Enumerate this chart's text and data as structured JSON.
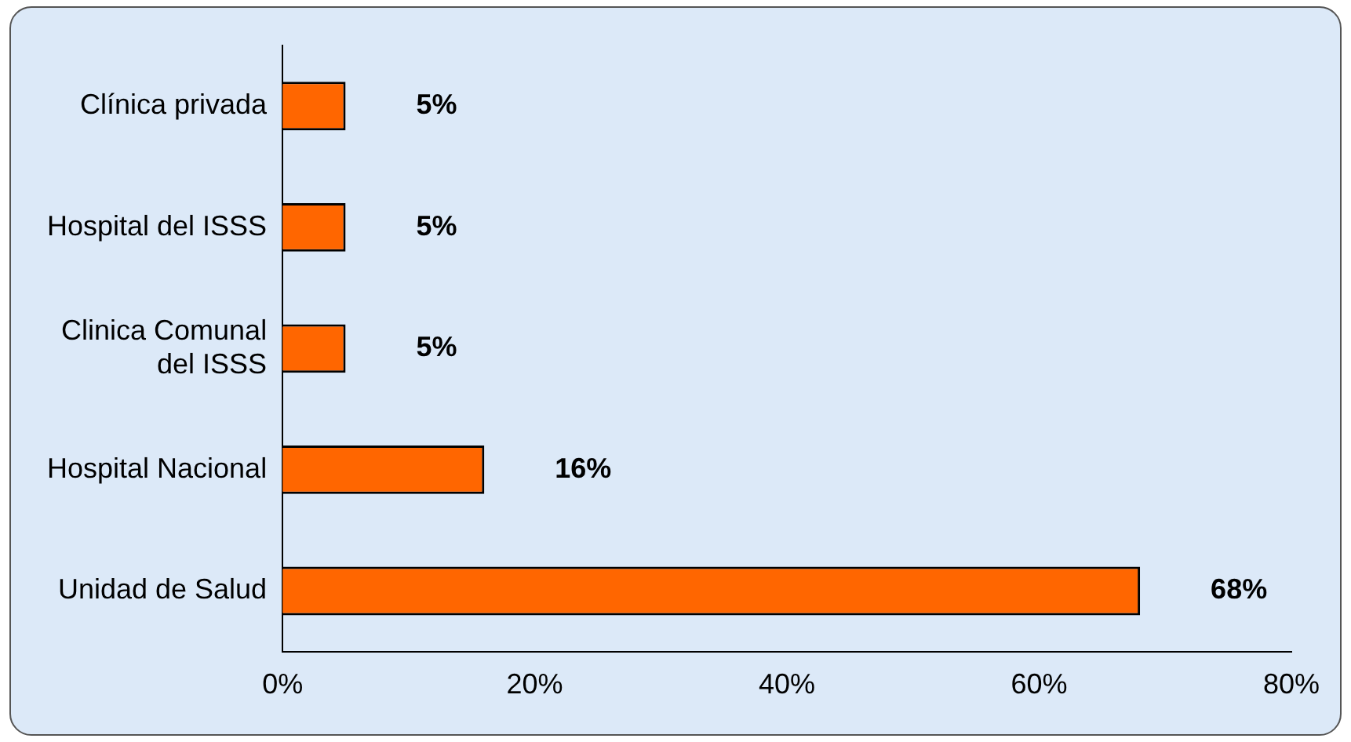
{
  "chart_data": {
    "type": "bar",
    "orientation": "horizontal",
    "categories": [
      "Clínica privada",
      "Hospital del ISSS",
      "Clinica Comunal del ISSS",
      "Hospital Nacional",
      "Unidad de Salud"
    ],
    "values": [
      5,
      5,
      5,
      16,
      68
    ],
    "color": "#ff6600",
    "value_labels": [
      "5%",
      "5%",
      "5%",
      "16%",
      "68%"
    ],
    "xlim": [
      0,
      80
    ],
    "xticks": [
      {
        "value": 0,
        "label": "0%"
      },
      {
        "value": 20,
        "label": "20%"
      },
      {
        "value": 40,
        "label": "40%"
      },
      {
        "value": 60,
        "label": "60%"
      },
      {
        "value": 80,
        "label": "80%"
      }
    ],
    "grid": false,
    "legend": false
  }
}
